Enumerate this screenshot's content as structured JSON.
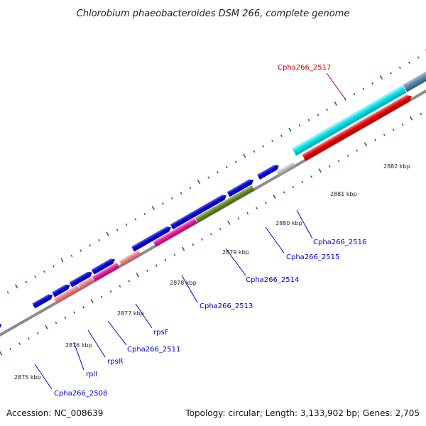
{
  "title": "Chlorobium phaeobacteroides DSM 266, complete genome",
  "footer": {
    "accession": "Accession: NC_008639",
    "topology": "Topology: circular; Length: 3,133,902 bp; Genes: 2,705"
  },
  "colors": {
    "label_blue": "#0000cc",
    "label_red": "#cc0000",
    "backbone": "#8c8c8c",
    "tick_green": "#1a7a1a",
    "forward_blue": "#0000dd",
    "cyan": "#00e5ee",
    "red": "#ee0000",
    "salmon": "#f08080",
    "magenta": "#ee1c9a",
    "olive": "#6b8e23",
    "grey": "#c0c0c0",
    "steelblue": "#5b87b0"
  },
  "kbp_labels": [
    {
      "id": "kbp-2875",
      "text": "2875 kbp"
    },
    {
      "id": "kbp-2876",
      "text": "2876 kbp"
    },
    {
      "id": "kbp-2877",
      "text": "2877 kbp"
    },
    {
      "id": "kbp-2878",
      "text": "2878 kbp"
    },
    {
      "id": "kbp-2879",
      "text": "2879 kbp"
    },
    {
      "id": "kbp-2880",
      "text": "2880 kbp"
    },
    {
      "id": "kbp-2881",
      "text": "2881 kbp"
    },
    {
      "id": "kbp-2882",
      "text": "2882 kbp"
    }
  ],
  "gene_labels": [
    {
      "id": "Cpha266_2508",
      "text": "Cpha266_2508",
      "color": "blue"
    },
    {
      "id": "rplI",
      "text": "rplI",
      "color": "blue"
    },
    {
      "id": "rpsR",
      "text": "rpsR",
      "color": "blue"
    },
    {
      "id": "Cpha266_2511",
      "text": "Cpha266_2511",
      "color": "blue"
    },
    {
      "id": "rpsF",
      "text": "rpsF",
      "color": "blue"
    },
    {
      "id": "Cpha266_2513",
      "text": "Cpha266_2513",
      "color": "blue"
    },
    {
      "id": "Cpha266_2514",
      "text": "Cpha266_2514",
      "color": "blue"
    },
    {
      "id": "Cpha266_2515",
      "text": "Cpha266_2515",
      "color": "blue"
    },
    {
      "id": "Cpha266_2516",
      "text": "Cpha266_2516",
      "color": "blue"
    },
    {
      "id": "Cpha266_2517",
      "text": "Cpha266_2517",
      "color": "red"
    }
  ]
}
